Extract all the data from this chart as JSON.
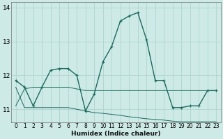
{
  "xlabel": "Humidex (Indice chaleur)",
  "bg_color": "#ceeae6",
  "grid_color": "#aed4cf",
  "line_color": "#1a6b5e",
  "xlim": [
    -0.5,
    23.5
  ],
  "ylim": [
    10.62,
    14.15
  ],
  "yticks": [
    11,
    12,
    13,
    14
  ],
  "xticks": [
    0,
    1,
    2,
    3,
    4,
    5,
    6,
    7,
    8,
    9,
    10,
    11,
    12,
    13,
    14,
    15,
    16,
    17,
    18,
    19,
    20,
    21,
    22,
    23
  ],
  "line1_x": [
    0,
    1,
    2,
    3,
    4,
    5,
    6,
    7,
    8,
    9,
    10,
    11,
    12,
    13,
    14,
    15,
    16,
    17,
    18,
    19,
    20,
    21,
    22,
    23
  ],
  "line1_y": [
    11.85,
    11.65,
    11.1,
    11.65,
    12.15,
    12.2,
    12.2,
    12.0,
    10.95,
    11.45,
    12.4,
    12.85,
    13.6,
    13.75,
    13.85,
    13.05,
    11.85,
    11.85,
    11.05,
    11.05,
    11.1,
    11.1,
    11.55,
    11.55
  ],
  "line2_x": [
    0,
    1,
    2,
    3,
    4,
    5,
    6,
    7,
    8,
    9,
    10,
    11,
    12,
    13,
    14,
    15,
    16,
    17,
    18,
    19,
    20,
    21,
    22,
    23
  ],
  "line2_y": [
    11.65,
    11.05,
    11.05,
    11.05,
    11.05,
    11.05,
    11.05,
    11.0,
    10.95,
    10.9,
    10.88,
    10.85,
    10.82,
    10.78,
    10.75,
    10.72,
    10.7,
    10.68,
    10.65,
    10.63,
    10.63,
    10.63,
    10.63,
    10.63
  ],
  "line3_x": [
    0,
    1,
    2,
    3,
    4,
    5,
    6,
    7,
    8,
    9,
    10,
    11,
    12,
    13,
    14,
    15,
    16,
    17,
    18,
    19,
    20,
    21,
    22,
    23
  ],
  "line3_y": [
    11.1,
    11.6,
    11.65,
    11.65,
    11.65,
    11.65,
    11.65,
    11.6,
    11.55,
    11.55,
    11.55,
    11.55,
    11.55,
    11.55,
    11.55,
    11.55,
    11.55,
    11.55,
    11.55,
    11.55,
    11.55,
    11.55,
    11.55,
    11.55
  ]
}
